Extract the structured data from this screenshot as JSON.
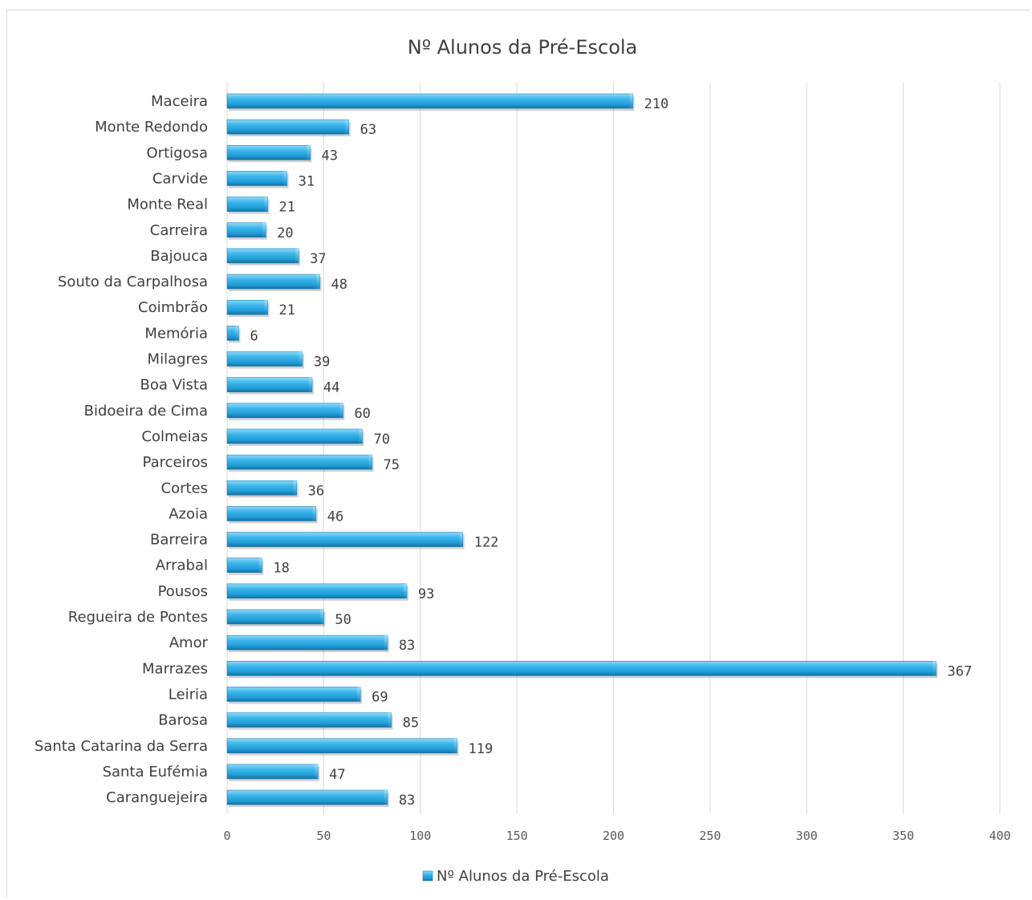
{
  "chart_data": {
    "type": "bar",
    "orientation": "horizontal",
    "title": "Nº Alunos da Pré-Escola",
    "categories": [
      "Maceira",
      "Monte Redondo",
      "Ortigosa",
      "Carvide",
      "Monte Real",
      "Carreira",
      "Bajouca",
      "Souto da Carpalhosa",
      "Coimbrão",
      "Memória",
      "Milagres",
      "Boa Vista",
      "Bidoeira de Cima",
      "Colmeias",
      "Parceiros",
      "Cortes",
      "Azoia",
      "Barreira",
      "Arrabal",
      "Pousos",
      "Regueira de Pontes",
      "Amor",
      "Marrazes",
      "Leiria",
      "Barosa",
      "Santa Catarina da Serra",
      "Santa Eufémia",
      "Caranguejeira"
    ],
    "series": [
      {
        "name": "Nº Alunos da Pré-Escola",
        "values": [
          210,
          63,
          43,
          31,
          21,
          20,
          37,
          48,
          21,
          6,
          39,
          44,
          60,
          70,
          75,
          36,
          46,
          122,
          18,
          93,
          50,
          83,
          367,
          69,
          85,
          119,
          47,
          83
        ],
        "data_labels": [
          "210",
          "63",
          "43",
          "31",
          "21",
          "20",
          "37",
          "48",
          "21",
          "6",
          "39",
          "44",
          "60",
          "70",
          "75",
          "36",
          "46",
          "122",
          "18",
          "93",
          "50",
          "83",
          "367",
          "69",
          "85",
          "119",
          "47",
          "83"
        ]
      }
    ],
    "xlim": [
      0,
      400
    ],
    "x_ticks": [
      "0",
      "50",
      "100",
      "150",
      "200",
      "250",
      "300",
      "350",
      "400"
    ],
    "xlabel": "",
    "ylabel": "",
    "grid": "vertical",
    "legend": "bottom",
    "colors": {
      "bar": "#29a8e0",
      "bar_light": "#7fd3f7",
      "bar_dark": "#1a7fb5",
      "grid": "#d9d9d9"
    }
  }
}
